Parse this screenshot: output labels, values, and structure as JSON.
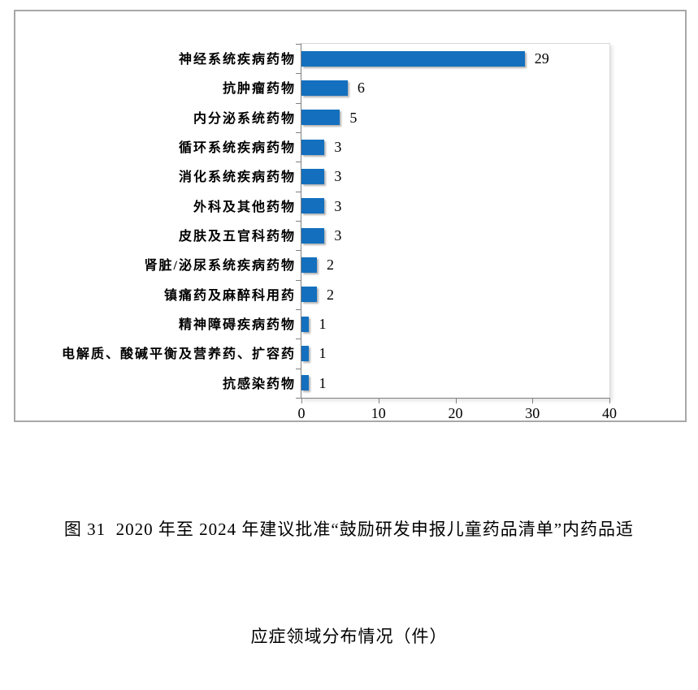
{
  "chart_data": {
    "type": "bar",
    "orientation": "horizontal",
    "categories": [
      "神经系统疾病药物",
      "抗肿瘤药物",
      "内分泌系统药物",
      "循环系统疾病药物",
      "消化系统疾病药物",
      "外科及其他药物",
      "皮肤及五官科药物",
      "肾脏/泌尿系统疾病药物",
      "镇痛药及麻醉科用药",
      "精神障碍疾病药物",
      "电解质、酸碱平衡及营养药、扩容药",
      "抗感染药物"
    ],
    "values": [
      29,
      6,
      5,
      3,
      3,
      3,
      3,
      2,
      2,
      1,
      1,
      1
    ],
    "data_labels": [
      29,
      6,
      5,
      3,
      3,
      3,
      3,
      2,
      2,
      1,
      1,
      1
    ],
    "xlim": [
      0,
      40
    ],
    "x_ticks": [
      0,
      10,
      20,
      30,
      40
    ],
    "title": "",
    "xlabel": "",
    "ylabel": "",
    "grid": false,
    "legend": false,
    "bar_color": "#1470be",
    "frame_border_color": "#a8a8a8",
    "axis_color": "#7f7f7f"
  },
  "caption": {
    "line1": "图 31  2020 年至 2024 年建议批准“鼓励研发申报儿童药品清单”内药品适",
    "line2": "应症领域分布情况（件）"
  }
}
